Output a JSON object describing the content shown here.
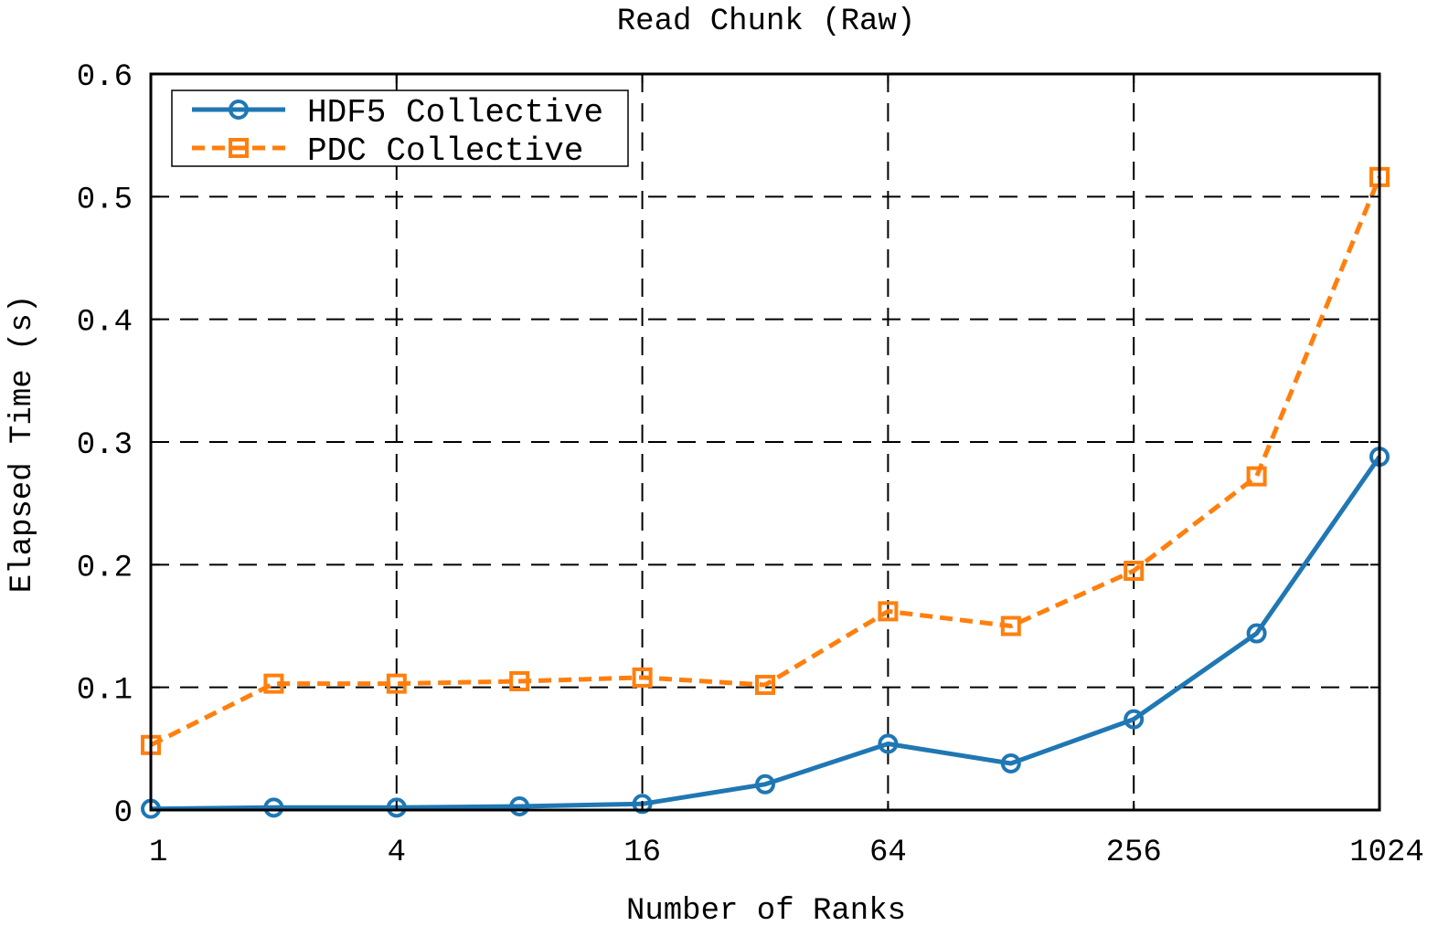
{
  "chart_data": {
    "type": "line",
    "title": "Read Chunk (Raw)",
    "xlabel": "Number of Ranks",
    "ylabel": "Elapsed Time (s)",
    "x_scale": "log2",
    "xlim": [
      1,
      1024
    ],
    "ylim": [
      0,
      0.6
    ],
    "grid": true,
    "legend_position": "top-left",
    "x": [
      1,
      2,
      4,
      8,
      16,
      32,
      64,
      128,
      256,
      512,
      1024
    ],
    "x_ticks": [
      1,
      4,
      16,
      64,
      256,
      1024
    ],
    "x_tick_labels": [
      "1",
      "4",
      "16",
      "64",
      "256",
      "1024"
    ],
    "y_ticks": [
      0,
      0.1,
      0.2,
      0.3,
      0.4,
      0.5,
      0.6
    ],
    "y_tick_labels": [
      "0",
      "0.1",
      "0.2",
      "0.3",
      "0.4",
      "0.5",
      "0.6"
    ],
    "series": [
      {
        "name": "HDF5 Collective",
        "color": "#1f77b4",
        "line_style": "solid",
        "marker": "circle",
        "values": [
          0.001,
          0.002,
          0.002,
          0.003,
          0.005,
          0.021,
          0.054,
          0.038,
          0.074,
          0.144,
          0.288
        ]
      },
      {
        "name": "PDC Collective",
        "color": "#ff7f0e",
        "line_style": "dashed",
        "marker": "square",
        "values": [
          0.053,
          0.103,
          0.103,
          0.105,
          0.108,
          0.102,
          0.162,
          0.15,
          0.195,
          0.272,
          0.516
        ]
      }
    ]
  }
}
